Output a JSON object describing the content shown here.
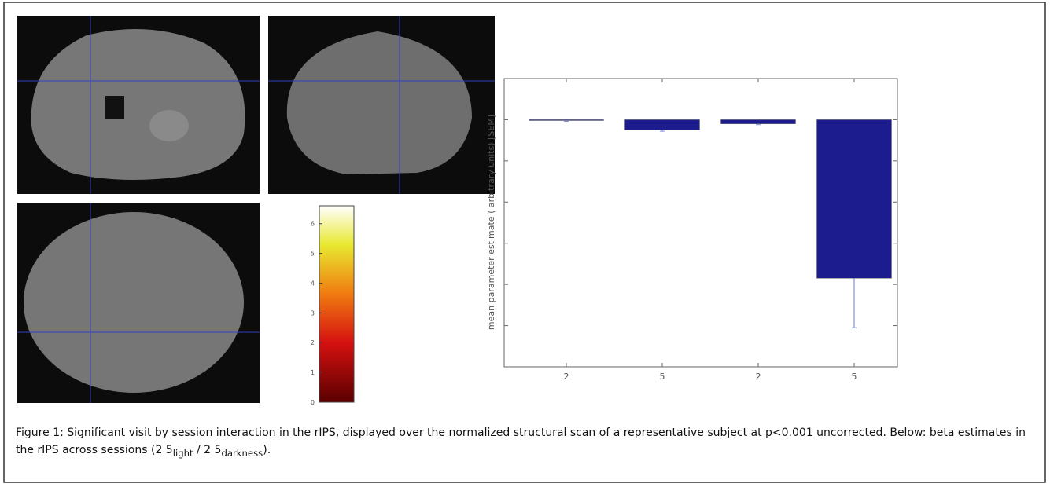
{
  "caption": {
    "text": "Figure 1: Significant visit by session interaction in the rIPS, displayed over the normalized structural scan of a representative subject at p<0.001 uncorrected. Below: beta estimates in the rIPS across sessions (2 5",
    "sub1": "light",
    "mid": " / 2 5",
    "sub2": "darkness",
    "end": ")."
  },
  "colorbar": {
    "lim": [
      0,
      6.6
    ],
    "ticks": [
      0,
      1,
      2,
      3,
      4,
      5,
      6
    ]
  },
  "chart_data": {
    "type": "bar",
    "y_label": "mean parameter estimate ( arbitrary units) [SEM]",
    "categories": [
      "2",
      "5",
      "2",
      "5"
    ],
    "values": [
      -0.02,
      -0.25,
      -0.1,
      -3.85
    ],
    "errors": [
      0.02,
      0.03,
      0.02,
      1.2
    ],
    "color": "#1c1c8e",
    "ylim": [
      -6,
      1
    ],
    "yticks": [
      -6,
      -5,
      -4,
      -3,
      -2,
      -1,
      0,
      1
    ]
  }
}
